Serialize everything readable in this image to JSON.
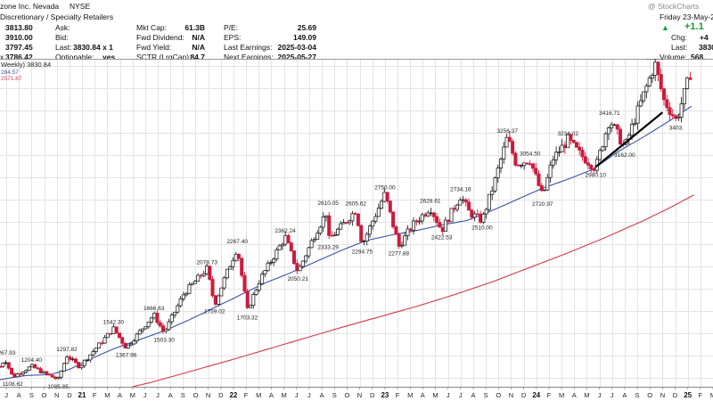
{
  "header": {
    "title_fragment": "zone Inc. Nevada",
    "exchange": "NYSE",
    "watermark": "@ StockCharts",
    "date": "Friday  23-May-2",
    "sector": "Discretionary / Specialty Retailers",
    "open_label": "",
    "open_value": "3813.80",
    "high_value": "3910.00",
    "low_value": "3797.45",
    "close_value": "3786.42",
    "ask_label": "Ask:",
    "bid_label": "Bid:",
    "last_label": "Last:",
    "last_value": "3830.84 x 1",
    "optionable_label": "Optionable:",
    "optionable_value": "yes",
    "close_prefix": "x",
    "stats_mid": [
      {
        "label": "Mkt Cap:",
        "value": "61.3B"
      },
      {
        "label": "Fwd Dividend:",
        "value": "N/A"
      },
      {
        "label": "Fwd Yield:",
        "value": "N/A"
      },
      {
        "label": "SCTR (LrgCap):",
        "value": "84.7"
      }
    ],
    "stats_right": [
      {
        "label": "P/E:",
        "value": "25.69"
      },
      {
        "label": "EPS:",
        "value": "149.09"
      },
      {
        "label": "Last Earnings:",
        "value": "2025-03-04"
      },
      {
        "label": "Next Earnings:",
        "value": "2025-05-27"
      }
    ],
    "change_value": "+1.1",
    "chg_label": "Chg:",
    "chg_value": "+4",
    "last2_label": "Last:",
    "last2_value": "3830",
    "volume_label": "Volume:",
    "volume_value": "568,",
    "legend_price": "Weekly) 3830.84",
    "legend_ma1": "284.57",
    "legend_ma2": "2571.87"
  },
  "colors": {
    "up_candle": "#222222",
    "down_candle": "#cc1a3c",
    "ma_short": "#3a52a8",
    "ma_long": "#d23a4a",
    "grid": "#e3e3e3",
    "up_arrow": "#1a9e3a"
  },
  "chart_data": {
    "type": "candlestick",
    "ylim": [
      1020,
      3960
    ],
    "x_start": "2020-07",
    "x_end": "2025-06",
    "month_ticks": [
      "J",
      "A",
      "S",
      "O",
      "N",
      "D",
      "21",
      "F",
      "M",
      "A",
      "M",
      "J",
      "J",
      "A",
      "S",
      "O",
      "N",
      "D",
      "22",
      "F",
      "M",
      "A",
      "M",
      "J",
      "J",
      "A",
      "S",
      "O",
      "N",
      "D",
      "23",
      "F",
      "M",
      "A",
      "M",
      "J",
      "J",
      "A",
      "S",
      "O",
      "N",
      "D",
      "24",
      "F",
      "M",
      "A",
      "M",
      "J",
      "J",
      "A",
      "S",
      "O",
      "N",
      "D",
      "25",
      "F",
      "M",
      "A",
      "M"
    ],
    "price_labels": [
      {
        "text": "1267.93",
        "t": 0.4,
        "v": 1267.93,
        "pos": "above"
      },
      {
        "text": "1204.40",
        "t": 2.5,
        "v": 1204.4,
        "pos": "above"
      },
      {
        "text": "1108.62",
        "t": 1.0,
        "v": 1108.62,
        "pos": "below"
      },
      {
        "text": "1297.82",
        "t": 5.3,
        "v": 1297.82,
        "pos": "above"
      },
      {
        "text": "1085.85",
        "t": 4.6,
        "v": 1085.85,
        "pos": "below"
      },
      {
        "text": "1542.30",
        "t": 9.0,
        "v": 1542.3,
        "pos": "above"
      },
      {
        "text": "1367.96",
        "t": 10.0,
        "v": 1367.96,
        "pos": "below"
      },
      {
        "text": "1666.63",
        "t": 12.2,
        "v": 1666.63,
        "pos": "above"
      },
      {
        "text": "1503.30",
        "t": 13.0,
        "v": 1503.3,
        "pos": "below"
      },
      {
        "text": "2078.73",
        "t": 16.4,
        "v": 2078.73,
        "pos": "above"
      },
      {
        "text": "1759.02",
        "t": 17.0,
        "v": 1759.02,
        "pos": "below"
      },
      {
        "text": "2267.40",
        "t": 18.8,
        "v": 2267.4,
        "pos": "above"
      },
      {
        "text": "1703.32",
        "t": 19.6,
        "v": 1703.32,
        "pos": "below"
      },
      {
        "text": "2362.24",
        "t": 22.6,
        "v": 2362.24,
        "pos": "above"
      },
      {
        "text": "2050.21",
        "t": 23.6,
        "v": 2050.21,
        "pos": "below"
      },
      {
        "text": "2610.05",
        "t": 26.0,
        "v": 2610.05,
        "pos": "above"
      },
      {
        "text": "2333.29",
        "t": 26.0,
        "v": 2333.29,
        "pos": "below"
      },
      {
        "text": "2605.62",
        "t": 28.2,
        "v": 2605.62,
        "pos": "above"
      },
      {
        "text": "2294.75",
        "t": 28.7,
        "v": 2294.75,
        "pos": "below"
      },
      {
        "text": "2750.00",
        "t": 30.5,
        "v": 2750.0,
        "pos": "above"
      },
      {
        "text": "2277.88",
        "t": 31.6,
        "v": 2277.88,
        "pos": "below"
      },
      {
        "text": "2628.61",
        "t": 34.1,
        "v": 2628.61,
        "pos": "above"
      },
      {
        "text": "2422.53",
        "t": 35.0,
        "v": 2422.53,
        "pos": "below"
      },
      {
        "text": "2734.16",
        "t": 36.5,
        "v": 2734.16,
        "pos": "above"
      },
      {
        "text": "2510.00",
        "t": 38.2,
        "v": 2510.0,
        "pos": "below"
      },
      {
        "text": "3256.37",
        "t": 40.2,
        "v": 3256.37,
        "pos": "above"
      },
      {
        "text": "3054.50",
        "t": 42.0,
        "v": 3054.5,
        "pos": "above"
      },
      {
        "text": "2720.97",
        "t": 43.0,
        "v": 2720.97,
        "pos": "below"
      },
      {
        "text": "3234.02",
        "t": 45.0,
        "v": 3234.02,
        "pos": "above"
      },
      {
        "text": "2980.10",
        "t": 47.2,
        "v": 2980.1,
        "pos": "below"
      },
      {
        "text": "3416.71",
        "t": 48.3,
        "v": 3416.71,
        "pos": "above"
      },
      {
        "text": "3162.00",
        "t": 49.5,
        "v": 3162.0,
        "pos": "below"
      },
      {
        "text": "3916.8",
        "t": 51.9,
        "v": 3916.8,
        "pos": "above"
      },
      {
        "text": "3403.",
        "t": 53.6,
        "v": 3403.0,
        "pos": "below"
      }
    ],
    "price_anchors": [
      [
        0,
        1200
      ],
      [
        0.4,
        1267.93
      ],
      [
        1.0,
        1108.62
      ],
      [
        2.5,
        1204.4
      ],
      [
        3.5,
        1140
      ],
      [
        4.6,
        1085.85
      ],
      [
        5.3,
        1297.82
      ],
      [
        6.3,
        1200
      ],
      [
        9.0,
        1542.3
      ],
      [
        10.0,
        1367.96
      ],
      [
        12.2,
        1666.63
      ],
      [
        13.0,
        1503.3
      ],
      [
        14.6,
        1860
      ],
      [
        16.4,
        2078.73
      ],
      [
        17.0,
        1759.02
      ],
      [
        18.0,
        2050
      ],
      [
        18.8,
        2267.4
      ],
      [
        19.6,
        1703.32
      ],
      [
        20.6,
        1980
      ],
      [
        22.6,
        2362.24
      ],
      [
        23.6,
        2050.21
      ],
      [
        25.1,
        2420
      ],
      [
        26.0,
        2610.05
      ],
      [
        26.0,
        2333.29
      ],
      [
        27.0,
        2450
      ],
      [
        28.2,
        2605.62
      ],
      [
        28.7,
        2294.75
      ],
      [
        30.5,
        2750
      ],
      [
        31.6,
        2277.88
      ],
      [
        32.7,
        2470
      ],
      [
        34.1,
        2628.61
      ],
      [
        35.0,
        2422.53
      ],
      [
        36.5,
        2734.16
      ],
      [
        37.2,
        2580
      ],
      [
        38.2,
        2510
      ],
      [
        39.2,
        2860
      ],
      [
        40.2,
        3256.37
      ],
      [
        40.9,
        3020
      ],
      [
        42.0,
        3054.5
      ],
      [
        43.0,
        2720.97
      ],
      [
        43.8,
        3060
      ],
      [
        45.0,
        3234.02
      ],
      [
        46.0,
        3100
      ],
      [
        47.2,
        2980.1
      ],
      [
        48.3,
        3416.71
      ],
      [
        49.5,
        3162
      ],
      [
        50.3,
        3420
      ],
      [
        51.9,
        3916.8
      ],
      [
        52.6,
        3590
      ],
      [
        53.6,
        3403
      ],
      [
        54.7,
        3830.84
      ]
    ],
    "ma_short_points": [
      [
        -0.2,
        1080
      ],
      [
        2,
        1120
      ],
      [
        4,
        1130
      ],
      [
        5.5,
        1175
      ],
      [
        7,
        1260
      ],
      [
        9,
        1360
      ],
      [
        11,
        1440
      ],
      [
        13,
        1520
      ],
      [
        15,
        1620
      ],
      [
        17,
        1730
      ],
      [
        19,
        1840
      ],
      [
        21,
        1950
      ],
      [
        23,
        2040
      ],
      [
        25,
        2140
      ],
      [
        27,
        2240
      ],
      [
        29,
        2330
      ],
      [
        31,
        2380
      ],
      [
        33,
        2420
      ],
      [
        35,
        2470
      ],
      [
        37,
        2510
      ],
      [
        39,
        2600
      ],
      [
        41,
        2700
      ],
      [
        43,
        2800
      ],
      [
        45,
        2880
      ],
      [
        47,
        2970
      ],
      [
        49,
        3130
      ],
      [
        51,
        3260
      ],
      [
        53,
        3400
      ],
      [
        55,
        3550
      ]
    ],
    "ma_long_points": [
      [
        10.5,
        1020
      ],
      [
        12,
        1060
      ],
      [
        15,
        1155
      ],
      [
        18,
        1250
      ],
      [
        21,
        1350
      ],
      [
        24,
        1450
      ],
      [
        27,
        1550
      ],
      [
        30,
        1645
      ],
      [
        33,
        1740
      ],
      [
        36,
        1845
      ],
      [
        39,
        1960
      ],
      [
        42,
        2090
      ],
      [
        45,
        2220
      ],
      [
        48,
        2360
      ],
      [
        51,
        2510
      ],
      [
        53,
        2620
      ],
      [
        55,
        2740
      ]
    ],
    "trendline": [
      [
        47.2,
        2990
      ],
      [
        52.5,
        3480
      ]
    ]
  }
}
